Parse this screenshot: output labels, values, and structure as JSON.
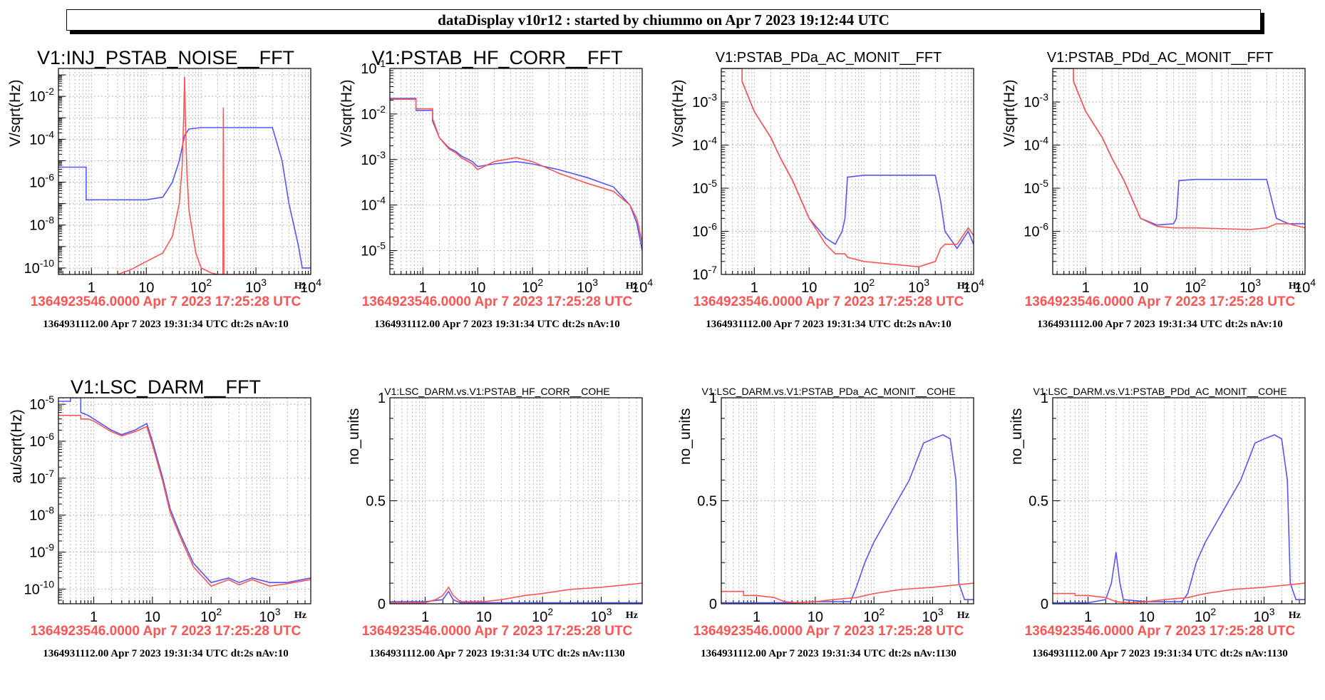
{
  "header": {
    "title": "dataDisplay v10r12 : started by chiummo on Apr  7 2023 19:12:44 UTC"
  },
  "colors": {
    "series_blue": "#5555ff",
    "series_red": "#ff5555",
    "grid": "#b8b8b8"
  },
  "panels": [
    {
      "title": "V1:INJ_PSTAB_NOISE__FFT",
      "ylabel": "V/sqrt(Hz)",
      "xunit": "Hz",
      "ts_ref": "1364923546.0000 Apr 7 2023 17:25:28 UTC",
      "ts_cur": "1364931112.00 Apr 7 2023 19:31:34 UTC dt:2s nAv:10"
    },
    {
      "title": "V1:PSTAB_HF_CORR__FFT",
      "ylabel": "V/sqrt(Hz)",
      "xunit": "Hz",
      "ts_ref": "1364923546.0000 Apr 7 2023 17:25:28 UTC",
      "ts_cur": "1364931112.00 Apr 7 2023 19:31:34 UTC dt:2s nAv:10"
    },
    {
      "title": "V1:PSTAB_PDa_AC_MONIT__FFT",
      "ylabel": "V/sqrt(Hz)",
      "xunit": "Hz",
      "ts_ref": "1364923546.0000 Apr 7 2023 17:25:28 UTC",
      "ts_cur": "1364931112.00 Apr 7 2023 19:31:34 UTC dt:2s nAv:10"
    },
    {
      "title": "V1:PSTAB_PDd_AC_MONIT__FFT",
      "ylabel": "V/sqrt(Hz)",
      "xunit": "Hz",
      "ts_ref": "1364923546.0000 Apr 7 2023 17:25:28 UTC",
      "ts_cur": "1364931112.00 Apr 7 2023 19:31:34 UTC dt:2s nAv:10"
    },
    {
      "title": "V1:LSC_DARM__FFT",
      "ylabel": "au/sqrt(Hz)",
      "xunit": "Hz",
      "ts_ref": "1364923546.0000 Apr 7 2023 17:25:28 UTC",
      "ts_cur": "1364931112.00 Apr 7 2023 19:31:34 UTC dt:2s nAv:10"
    },
    {
      "title": "V1:LSC_DARM.vs.V1:PSTAB_HF_CORR__COHE",
      "ylabel": "no_units",
      "xunit": "Hz",
      "ts_ref": "1364923546.0000 Apr 7 2023 17:25:28 UTC",
      "ts_cur": "1364931112.00 Apr 7 2023 19:31:34 UTC dt:2s nAv:1130"
    },
    {
      "title": "V1:LSC_DARM.vs.V1:PSTAB_PDa_AC_MONIT__COHE",
      "ylabel": "no_units",
      "xunit": "Hz",
      "ts_ref": "1364923546.0000 Apr 7 2023 17:25:28 UTC",
      "ts_cur": "1364931112.00 Apr 7 2023 19:31:34 UTC dt:2s nAv:1130"
    },
    {
      "title": "V1:LSC_DARM.vs.V1:PSTAB_PDd_AC_MONIT__COHE",
      "ylabel": "no_units",
      "xunit": "Hz",
      "ts_ref": "1364923546.0000 Apr 7 2023 17:25:28 UTC",
      "ts_cur": "1364931112.00 Apr 7 2023 19:31:34 UTC dt:2s nAv:1130"
    }
  ],
  "chart_data": [
    {
      "type": "line",
      "title": "V1:INJ_PSTAB_NOISE__FFT",
      "ylabel": "V/sqrt(Hz)",
      "xlabel": "Hz",
      "xscale": "log",
      "yscale": "log",
      "xlim": [
        0.25,
        10000
      ],
      "ylim": [
        5e-11,
        0.2
      ],
      "grid": true,
      "xticks": [
        "1",
        "10",
        "10^2",
        "10^3",
        "10^4"
      ],
      "yticks": [
        "10^-10",
        "10^-8",
        "10^-6",
        "10^-4",
        "10^-2"
      ],
      "series": [
        {
          "color": "#5555ff",
          "x": [
            0.25,
            0.8,
            0.8,
            2,
            10,
            20,
            30,
            40,
            50,
            60,
            100,
            1000,
            2000,
            3000,
            4000,
            6000,
            7000,
            10000
          ],
          "y": [
            5e-06,
            5e-06,
            1.5e-07,
            1.5e-07,
            1.5e-07,
            2e-07,
            1e-06,
            1e-05,
            0.00015,
            0.0003,
            0.00035,
            0.00035,
            0.00035,
            1e-05,
            1e-07,
            1e-09,
            1e-10,
            1e-10
          ]
        },
        {
          "color": "#ff5555",
          "x": [
            3,
            5,
            10,
            20,
            30,
            40,
            45,
            48,
            50,
            52,
            55,
            60,
            80,
            100,
            150,
            200,
            250,
            255,
            260,
            300,
            500,
            1000
          ],
          "y": [
            5e-11,
            8e-11,
            2e-10,
            5e-10,
            3e-09,
            1e-07,
            5e-06,
            0.0008,
            0.08,
            0.0005,
            3e-06,
            5e-08,
            5e-10,
            1e-10,
            6e-11,
            5e-11,
            5e-11,
            0.003,
            5e-11,
            5e-11,
            5e-11,
            5e-11
          ]
        }
      ]
    },
    {
      "type": "line",
      "title": "V1:PSTAB_HF_CORR__FFT",
      "ylabel": "V/sqrt(Hz)",
      "xlabel": "Hz",
      "xscale": "log",
      "yscale": "log",
      "xlim": [
        0.25,
        10000
      ],
      "ylim": [
        3e-06,
        0.1
      ],
      "grid": true,
      "xticks": [
        "1",
        "10",
        "10^2",
        "10^3",
        "10^4"
      ],
      "yticks": [
        "10^-5",
        "10^-4",
        "10^-3",
        "10^-2",
        "10^-1"
      ],
      "series": [
        {
          "color": "#5555ff",
          "x": [
            0.25,
            0.75,
            0.75,
            1.5,
            1.5,
            2,
            3,
            4,
            5,
            8,
            10,
            20,
            50,
            100,
            300,
            1000,
            3000,
            6000,
            8000,
            10000
          ],
          "y": [
            0.022,
            0.022,
            0.012,
            0.012,
            0.007,
            0.003,
            0.0018,
            0.0015,
            0.0012,
            0.0009,
            0.0007,
            0.0008,
            0.0009,
            0.0008,
            0.0006,
            0.0004,
            0.00025,
            0.0001,
            4e-05,
            1e-05
          ]
        },
        {
          "color": "#ff5555",
          "x": [
            0.25,
            0.75,
            0.75,
            1.5,
            1.5,
            2,
            3,
            4,
            5,
            8,
            10,
            20,
            50,
            100,
            300,
            1000,
            3000,
            6000,
            8000,
            10000
          ],
          "y": [
            0.021,
            0.021,
            0.013,
            0.013,
            0.008,
            0.003,
            0.0017,
            0.0014,
            0.0011,
            0.0008,
            0.0006,
            0.0009,
            0.0011,
            0.0009,
            0.0005,
            0.0003,
            0.0002,
            0.0001,
            5e-05,
            1.5e-05
          ]
        }
      ]
    },
    {
      "type": "line",
      "title": "V1:PSTAB_PDa_AC_MONIT__FFT",
      "ylabel": "V/sqrt(Hz)",
      "xlabel": "Hz",
      "xscale": "log",
      "yscale": "log",
      "xlim": [
        0.25,
        10000
      ],
      "ylim": [
        1e-07,
        0.006
      ],
      "grid": true,
      "xticks": [
        "1",
        "10",
        "10^2",
        "10^3",
        "10^4"
      ],
      "yticks": [
        "10^-7",
        "10^-6",
        "10^-5",
        "10^-4",
        "10^-3"
      ],
      "series": [
        {
          "color": "#5555ff",
          "x": [
            0.25,
            0.6,
            0.6,
            0.8,
            1,
            2,
            3,
            5,
            10,
            20,
            30,
            40,
            45,
            50,
            100,
            1000,
            2000,
            2500,
            3000,
            5000,
            8000,
            10000
          ],
          "y": [
            0.006,
            0.006,
            0.003,
            0.0012,
            0.0006,
            0.00015,
            5e-05,
            1.5e-05,
            2e-06,
            7e-07,
            5e-07,
            1e-06,
            2e-06,
            1.8e-05,
            2e-05,
            2e-05,
            2e-05,
            5e-06,
            1e-06,
            4e-07,
            1e-06,
            5e-07
          ]
        },
        {
          "color": "#ff5555",
          "x": [
            0.25,
            0.6,
            0.6,
            0.8,
            1,
            2,
            3,
            5,
            10,
            20,
            30,
            40,
            45,
            50,
            100,
            1000,
            2000,
            2500,
            3000,
            5000,
            8000,
            10000
          ],
          "y": [
            0.006,
            0.006,
            0.003,
            0.0012,
            0.0006,
            0.00015,
            5e-05,
            1.5e-05,
            2e-06,
            5e-07,
            3e-07,
            3e-07,
            3e-07,
            2.5e-07,
            2e-07,
            1.5e-07,
            2e-07,
            4e-07,
            5e-07,
            5e-07,
            1.2e-06,
            8e-07
          ]
        }
      ]
    },
    {
      "type": "line",
      "title": "V1:PSTAB_PDd_AC_MONIT__FFT",
      "ylabel": "V/sqrt(Hz)",
      "xlabel": "Hz",
      "xscale": "log",
      "yscale": "log",
      "xlim": [
        0.25,
        10000
      ],
      "ylim": [
        1e-07,
        0.006
      ],
      "grid": true,
      "xticks": [
        "1",
        "10",
        "10^2",
        "10^3",
        "10^4"
      ],
      "yticks": [
        "10^-6",
        "10^-5",
        "10^-4",
        "10^-3"
      ],
      "series": [
        {
          "color": "#5555ff",
          "x": [
            0.25,
            0.6,
            0.6,
            0.8,
            1,
            2,
            3,
            5,
            10,
            20,
            40,
            45,
            50,
            100,
            1000,
            2000,
            2500,
            3000,
            5000,
            10000
          ],
          "y": [
            0.006,
            0.006,
            0.003,
            0.0012,
            0.0006,
            0.00015,
            5e-05,
            1.5e-05,
            2e-06,
            1.4e-06,
            1.5e-06,
            2e-06,
            1.5e-05,
            1.6e-05,
            1.6e-05,
            1.6e-05,
            5e-06,
            2e-06,
            1.5e-06,
            1.5e-06
          ]
        },
        {
          "color": "#ff5555",
          "x": [
            0.25,
            0.6,
            0.6,
            0.8,
            1,
            2,
            3,
            5,
            10,
            20,
            40,
            50,
            100,
            1000,
            2000,
            3000,
            5000,
            10000
          ],
          "y": [
            0.006,
            0.006,
            0.003,
            0.0012,
            0.0006,
            0.00015,
            5e-05,
            1.5e-05,
            2e-06,
            1.3e-06,
            1.2e-06,
            1.2e-06,
            1.2e-06,
            1.1e-06,
            1.2e-06,
            1.5e-06,
            1.5e-06,
            1.2e-06
          ]
        }
      ]
    },
    {
      "type": "line",
      "title": "V1:LSC_DARM__FFT",
      "ylabel": "au/sqrt(Hz)",
      "xlabel": "Hz",
      "xscale": "log",
      "yscale": "log",
      "xlim": [
        0.25,
        5000
      ],
      "ylim": [
        4e-11,
        1.5e-05
      ],
      "grid": true,
      "xticks": [
        "1",
        "10",
        "10^2",
        "10^3"
      ],
      "yticks": [
        "10^-10",
        "10^-9",
        "10^-8",
        "10^-7",
        "10^-6",
        "10^-5"
      ],
      "series": [
        {
          "color": "#5555ff",
          "x": [
            0.25,
            0.4,
            0.4,
            0.6,
            0.6,
            0.8,
            1,
            2,
            3,
            5,
            8,
            10,
            15,
            20,
            30,
            50,
            100,
            200,
            300,
            500,
            1000,
            2000,
            5000
          ],
          "y": [
            1.2e-05,
            1.2e-05,
            1.5e-05,
            1.5e-05,
            6e-06,
            5e-06,
            4e-06,
            2e-06,
            1.5e-06,
            2e-06,
            3e-06,
            1e-06,
            1e-07,
            1.5e-08,
            3e-09,
            5e-10,
            1.5e-10,
            2e-10,
            1.5e-10,
            2e-10,
            1.5e-10,
            1.5e-10,
            2e-10
          ]
        },
        {
          "color": "#ff5555",
          "x": [
            0.25,
            0.4,
            0.4,
            0.6,
            0.6,
            0.8,
            1,
            2,
            3,
            5,
            8,
            10,
            15,
            20,
            30,
            50,
            100,
            200,
            300,
            500,
            1000,
            2000,
            5000
          ],
          "y": [
            5e-06,
            5e-06,
            5e-06,
            5e-06,
            4e-06,
            4e-06,
            3.5e-06,
            1.8e-06,
            1.4e-06,
            1.8e-06,
            2.5e-06,
            8e-07,
            8e-08,
            1.2e-08,
            2.5e-09,
            4e-10,
            1.2e-10,
            1.8e-10,
            1.3e-10,
            1.8e-10,
            1.2e-10,
            1.4e-10,
            1.8e-10
          ]
        }
      ]
    },
    {
      "type": "line",
      "title": "V1:LSC_DARM.vs.V1:PSTAB_HF_CORR__COHE",
      "ylabel": "no_units",
      "xlabel": "Hz",
      "xscale": "log",
      "yscale": "linear",
      "xlim": [
        0.25,
        5000
      ],
      "ylim": [
        0,
        1
      ],
      "grid": true,
      "xticks": [
        "1",
        "10",
        "10^2",
        "10^3"
      ],
      "yticks": [
        "0",
        "0.5",
        "1"
      ],
      "series": [
        {
          "color": "#5555ff",
          "x": [
            0.25,
            1,
            2,
            2.5,
            3,
            4,
            10,
            100,
            1000,
            5000
          ],
          "y": [
            0.01,
            0.01,
            0.02,
            0.06,
            0.02,
            0.005,
            0.005,
            0.005,
            0.005,
            0.005
          ]
        },
        {
          "color": "#ff5555",
          "x": [
            0.25,
            1,
            1.5,
            2,
            2.5,
            3,
            4,
            10,
            20,
            50,
            100,
            300,
            1000,
            5000
          ],
          "y": [
            0.005,
            0.005,
            0.02,
            0.04,
            0.08,
            0.04,
            0.01,
            0.01,
            0.02,
            0.04,
            0.05,
            0.07,
            0.08,
            0.1
          ]
        }
      ]
    },
    {
      "type": "line",
      "title": "V1:LSC_DARM.vs.V1:PSTAB_PDa_AC_MONIT__COHE",
      "ylabel": "no_units",
      "xlabel": "Hz",
      "xscale": "log",
      "yscale": "linear",
      "xlim": [
        0.25,
        5000
      ],
      "ylim": [
        0,
        1
      ],
      "grid": true,
      "xticks": [
        "1",
        "10",
        "10^2",
        "10^3"
      ],
      "yticks": [
        "0",
        "0.5",
        "1"
      ],
      "series": [
        {
          "color": "#5555ff",
          "x": [
            0.25,
            5,
            10,
            40,
            50,
            70,
            100,
            200,
            400,
            700,
            1000,
            1500,
            2000,
            2500,
            2800,
            3500,
            5000
          ],
          "y": [
            0.005,
            0.005,
            0.01,
            0.01,
            0.08,
            0.2,
            0.3,
            0.45,
            0.6,
            0.78,
            0.8,
            0.82,
            0.8,
            0.6,
            0.1,
            0.02,
            0.02
          ]
        },
        {
          "color": "#ff5555",
          "x": [
            0.25,
            0.6,
            0.6,
            1,
            2,
            3,
            5,
            10,
            20,
            50,
            100,
            300,
            1000,
            5000
          ],
          "y": [
            0.06,
            0.06,
            0.04,
            0.04,
            0.03,
            0.01,
            0.005,
            0.01,
            0.02,
            0.03,
            0.05,
            0.07,
            0.08,
            0.1
          ]
        }
      ]
    },
    {
      "type": "line",
      "title": "V1:LSC_DARM.vs.V1:PSTAB_PDd_AC_MONIT__COHE",
      "ylabel": "no_units",
      "xlabel": "Hz",
      "xscale": "log",
      "yscale": "linear",
      "xlim": [
        0.25,
        5000
      ],
      "ylim": [
        0,
        1
      ],
      "grid": true,
      "xticks": [
        "1",
        "10",
        "10^2",
        "10^3"
      ],
      "yticks": [
        "0",
        "0.5",
        "1"
      ],
      "series": [
        {
          "color": "#5555ff",
          "x": [
            0.25,
            1,
            2,
            2.5,
            3,
            3.5,
            4,
            10,
            40,
            50,
            70,
            100,
            200,
            400,
            700,
            1000,
            1500,
            2000,
            2500,
            2800,
            3500,
            5000
          ],
          "y": [
            0.005,
            0.005,
            0.02,
            0.1,
            0.25,
            0.1,
            0.02,
            0.01,
            0.01,
            0.05,
            0.2,
            0.3,
            0.45,
            0.6,
            0.78,
            0.8,
            0.82,
            0.8,
            0.6,
            0.1,
            0.02,
            0.02
          ]
        },
        {
          "color": "#ff5555",
          "x": [
            0.25,
            0.6,
            0.6,
            1,
            2,
            3,
            5,
            10,
            20,
            50,
            100,
            300,
            1000,
            5000
          ],
          "y": [
            0.05,
            0.05,
            0.04,
            0.04,
            0.03,
            0.01,
            0.005,
            0.01,
            0.02,
            0.03,
            0.05,
            0.07,
            0.08,
            0.1
          ]
        }
      ]
    }
  ]
}
